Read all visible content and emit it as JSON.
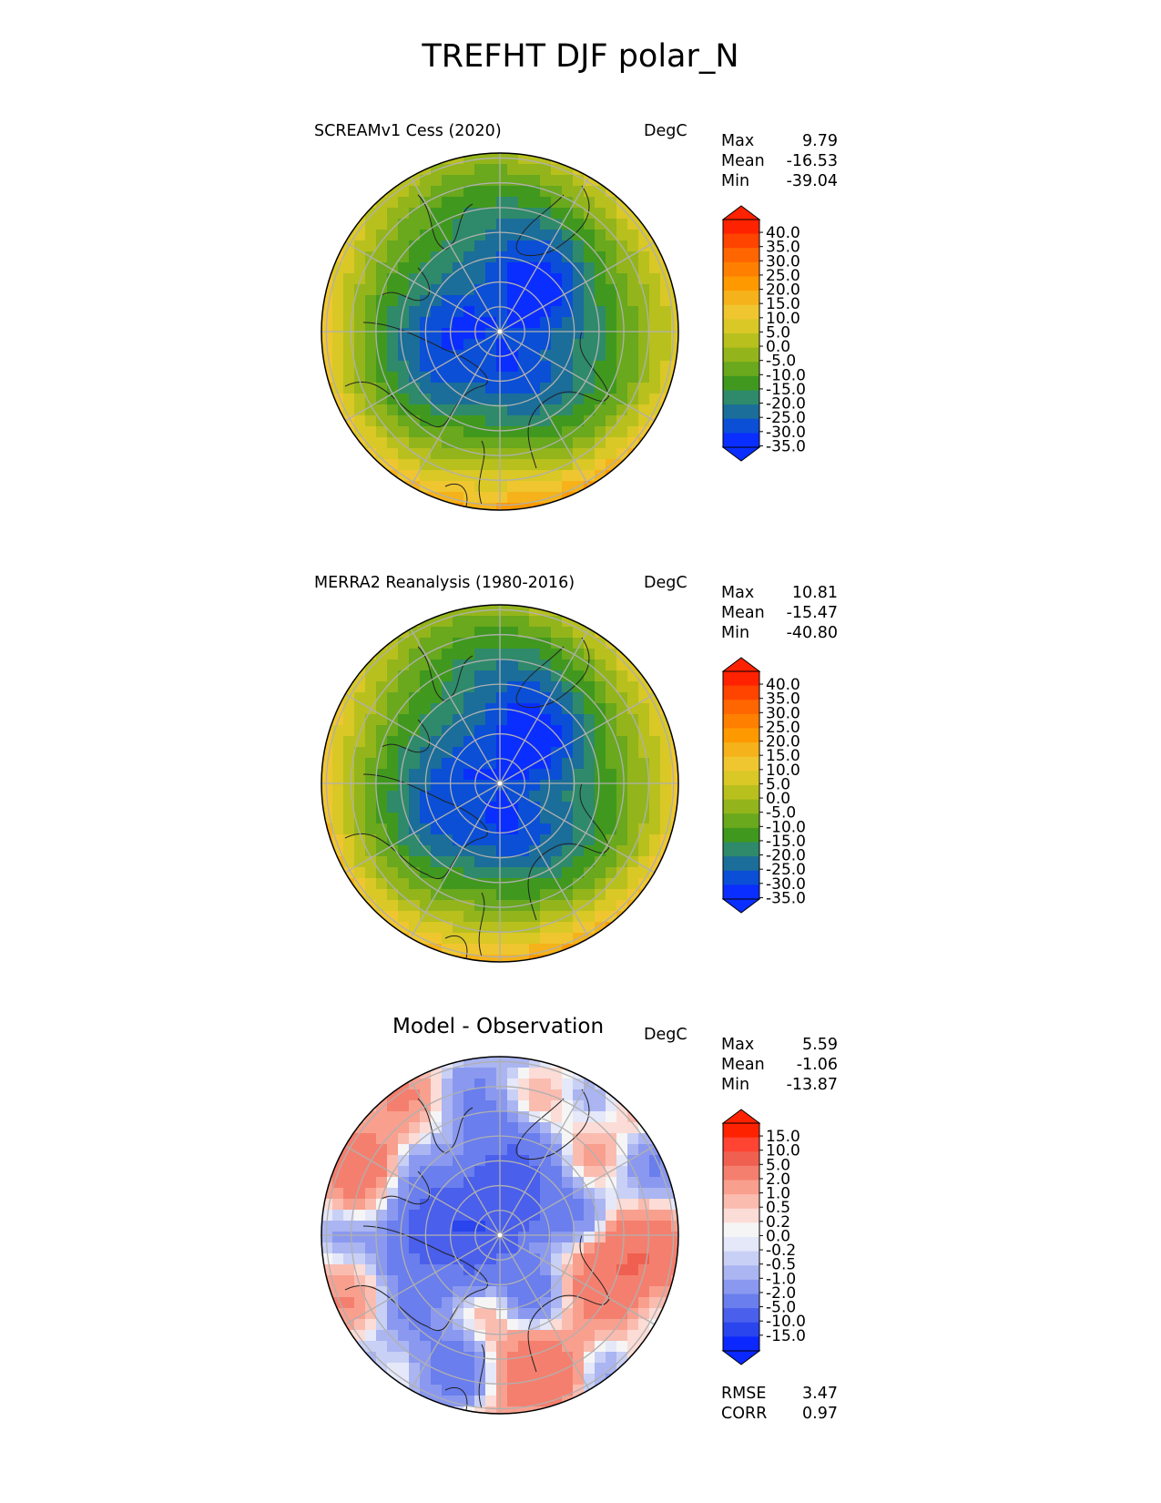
{
  "title": "TREFHT DJF polar_N",
  "panels": [
    {
      "title": "SCREAMv1 Cess (2020)",
      "units": "DegC",
      "stats": [
        {
          "label": "Max",
          "value": "9.79"
        },
        {
          "label": "Mean",
          "value": "-16.53"
        },
        {
          "label": "Min",
          "value": "-39.04"
        }
      ],
      "colorbar_ticks": [
        "40.0",
        "35.0",
        "30.0",
        "25.0",
        "20.0",
        "15.0",
        "10.0",
        "5.0",
        "0.0",
        "-5.0",
        "-10.0",
        "-15.0",
        "-20.0",
        "-25.0",
        "-30.0",
        "-35.0"
      ]
    },
    {
      "title": "MERRA2 Reanalysis (1980-2016)",
      "units": "DegC",
      "stats": [
        {
          "label": "Max",
          "value": "10.81"
        },
        {
          "label": "Mean",
          "value": "-15.47"
        },
        {
          "label": "Min",
          "value": "-40.80"
        }
      ],
      "colorbar_ticks": [
        "40.0",
        "35.0",
        "30.0",
        "25.0",
        "20.0",
        "15.0",
        "10.0",
        "5.0",
        "0.0",
        "-5.0",
        "-10.0",
        "-15.0",
        "-20.0",
        "-25.0",
        "-30.0",
        "-35.0"
      ]
    },
    {
      "title": "Model - Observation",
      "units": "DegC",
      "stats": [
        {
          "label": "Max",
          "value": "5.59"
        },
        {
          "label": "Mean",
          "value": "-1.06"
        },
        {
          "label": "Min",
          "value": "-13.87"
        }
      ],
      "colorbar_ticks": [
        "15.0",
        "10.0",
        "5.0",
        "2.0",
        "1.0",
        "0.5",
        "0.2",
        "0.0",
        "-0.2",
        "-0.5",
        "-1.0",
        "-2.0",
        "-5.0",
        "-10.0",
        "-15.0"
      ],
      "metrics": [
        {
          "label": "RMSE",
          "value": "3.47"
        },
        {
          "label": "CORR",
          "value": "0.97"
        }
      ]
    }
  ],
  "colors": {
    "temp_palette": [
      "#ff2200",
      "#ff4400",
      "#ff6600",
      "#ff8000",
      "#ff9900",
      "#f5b21a",
      "#f0c630",
      "#d9c826",
      "#b8c01e",
      "#93b51b",
      "#6aa81d",
      "#40991e",
      "#2e8a6a",
      "#1a6e99",
      "#0a4fd6",
      "#0a2eff"
    ],
    "diff_palette": [
      "#ff2200",
      "#ff4433",
      "#f06050",
      "#f57f6e",
      "#f99f8e",
      "#fbbcb0",
      "#fcdcd6",
      "#f5f5f5",
      "#e5e8f8",
      "#c9d0f5",
      "#aab5f2",
      "#8a99ef",
      "#6a7eed",
      "#4a5fec",
      "#2a44ee",
      "#0a28ff"
    ]
  },
  "chart_data": [
    {
      "type": "heatmap",
      "projection": "north-polar-stereographic",
      "title": "SCREAMv1 Cess (2020)",
      "units": "DegC",
      "stats": {
        "max": 9.79,
        "mean": -16.53,
        "min": -39.04
      },
      "colorbar": {
        "min": -35.0,
        "max": 40.0,
        "step": 5.0,
        "extend": "both"
      },
      "grid": true
    },
    {
      "type": "heatmap",
      "projection": "north-polar-stereographic",
      "title": "MERRA2 Reanalysis (1980-2016)",
      "units": "DegC",
      "stats": {
        "max": 10.81,
        "mean": -15.47,
        "min": -40.8
      },
      "colorbar": {
        "min": -35.0,
        "max": 40.0,
        "step": 5.0,
        "extend": "both"
      },
      "grid": true
    },
    {
      "type": "heatmap",
      "projection": "north-polar-stereographic",
      "title": "Model - Observation",
      "units": "DegC",
      "stats": {
        "max": 5.59,
        "mean": -1.06,
        "min": -13.87
      },
      "colorbar": {
        "levels": [
          -15.0,
          -10.0,
          -5.0,
          -2.0,
          -1.0,
          -0.5,
          -0.2,
          0.0,
          0.2,
          0.5,
          1.0,
          2.0,
          5.0,
          10.0,
          15.0
        ],
        "extend": "both"
      },
      "metrics": {
        "rmse": 3.47,
        "corr": 0.97
      },
      "grid": true
    }
  ]
}
